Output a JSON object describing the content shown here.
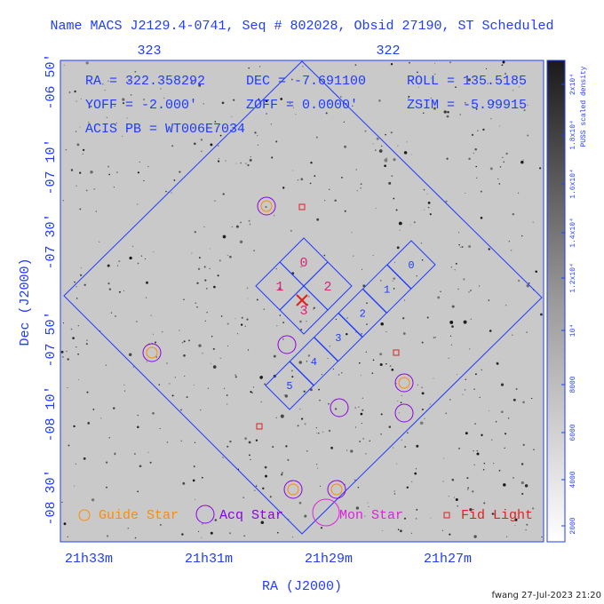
{
  "header": {
    "title": "Name MACS J2129.4-0741, Seq # 802028, Obsid 27190, ST Scheduled"
  },
  "top_axis": {
    "labels": [
      "323",
      "322"
    ]
  },
  "info": {
    "ra": "RA = 322.358292",
    "dec": "DEC = -7.691100",
    "roll": "ROLL = 135.5185",
    "yoff": "YOFF = -2.000'",
    "zoff": "ZOFF = 0.0000'",
    "zsim": "ZSIM = -5.99915",
    "acis_pb": "ACIS PB = WT006E7034"
  },
  "y_axis": {
    "label": "Dec (J2000)",
    "ticks": [
      "-06 50'",
      "-07 10'",
      "-07 30'",
      "-07 50'",
      "-08 10'",
      "-08 30'"
    ]
  },
  "x_axis": {
    "label": "RA (J2000)",
    "ticks": [
      "21h33m",
      "21h31m",
      "21h29m",
      "21h27m"
    ]
  },
  "chips": {
    "i_array": [
      "0",
      "1",
      "2",
      "3"
    ],
    "s_array": [
      "0",
      "1",
      "2",
      "3",
      "4",
      "5"
    ]
  },
  "legend": [
    "Guide Star",
    "Acq Star",
    "Mon Star",
    "Fid Light"
  ],
  "colorbar": {
    "label": "PUSS scaled density",
    "ticks": [
      "2000",
      "4000",
      "6000",
      "8000",
      "10⁴",
      "1.2x10⁴",
      "1.4x10⁴",
      "1.6x10⁴",
      "1.8x10⁴",
      "2x10⁴"
    ]
  },
  "footer": "fwang 27-Jul-2023 21:20"
}
